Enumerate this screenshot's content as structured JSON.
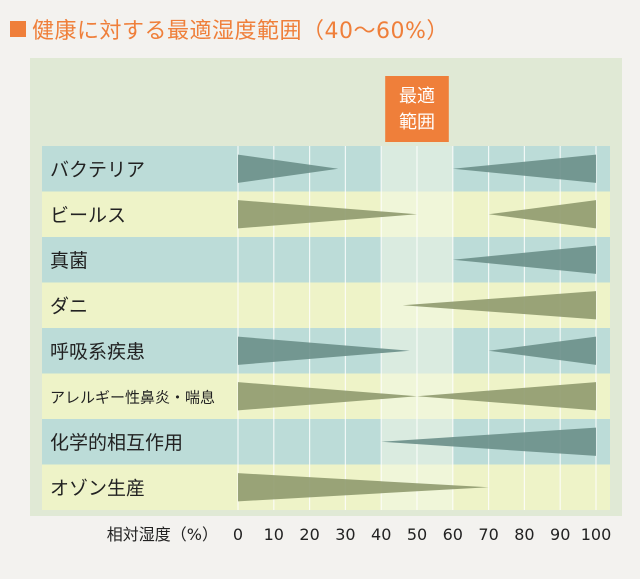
{
  "title": "健康に対する最適湿度範囲（40～60%）",
  "colors": {
    "accent": "#ef7f3a",
    "row_teal": "#bcdcd8",
    "row_yellow": "#eef3c8",
    "triangle_teal": "#6a8f8a",
    "triangle_olive": "#8f9a6e",
    "optimal_band": "#f3f8e8"
  },
  "chart_data": {
    "type": "range-triangle",
    "title": "健康に対する最適湿度範囲（40～60%）",
    "xlabel": "相対湿度（%）",
    "xlim": [
      0,
      100
    ],
    "xticks": [
      "0",
      "10",
      "20",
      "30",
      "40",
      "50",
      "60",
      "70",
      "80",
      "90",
      "100"
    ],
    "optimal_range": {
      "label": [
        "最適",
        "範囲"
      ],
      "from": 40,
      "to": 60
    },
    "categories": [
      {
        "name": "バクテリア",
        "low": [
          0,
          28
        ],
        "high": [
          60,
          100
        ]
      },
      {
        "name": "ビールス",
        "low": [
          0,
          50
        ],
        "high": [
          70,
          100
        ]
      },
      {
        "name": "真菌",
        "low": null,
        "high": [
          60,
          100
        ]
      },
      {
        "name": "ダニ",
        "low": null,
        "high": [
          46,
          100
        ]
      },
      {
        "name": "呼吸系疾患",
        "low": [
          0,
          48
        ],
        "high": [
          70,
          100
        ]
      },
      {
        "name": "アレルギー性鼻炎・喘息",
        "low": [
          0,
          50
        ],
        "high": [
          50,
          100
        ]
      },
      {
        "name": "化学的相互作用",
        "low": null,
        "high": [
          40,
          100
        ]
      },
      {
        "name": "オゾン生産",
        "low": [
          0,
          70
        ],
        "high": null
      }
    ]
  }
}
